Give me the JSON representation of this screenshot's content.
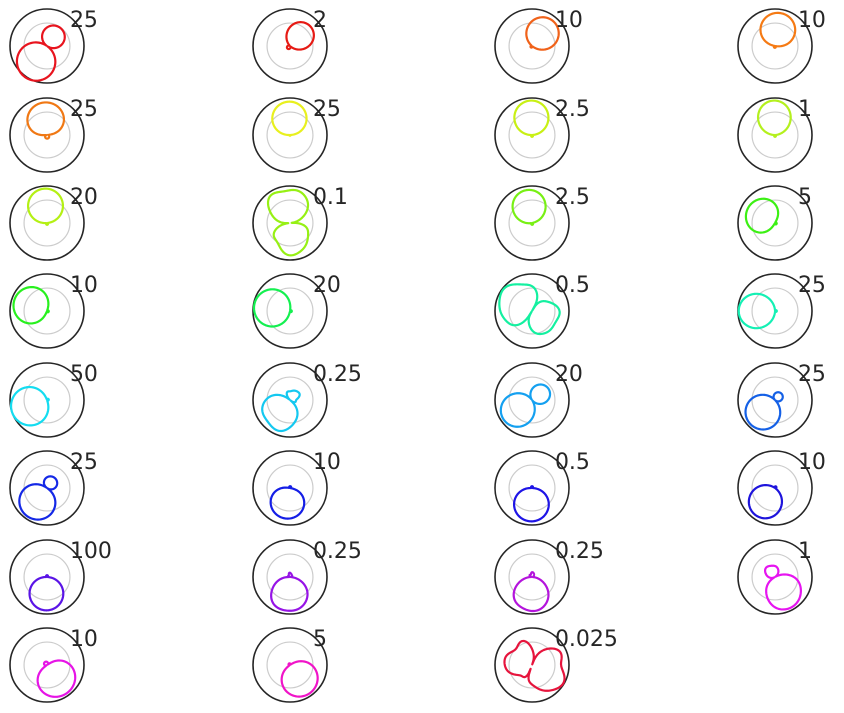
{
  "chart_data": {
    "type": "polar-grid",
    "rows": 8,
    "cols": 4,
    "outer_ring_color": "#262626",
    "inner_ring_color": "#cccccc",
    "panels": [
      {
        "label": "25",
        "color": "#e8141e",
        "dir": 235,
        "len": 1.05,
        "width": 0.38,
        "back": 0.62,
        "wobble": 0.0
      },
      {
        "label": "2",
        "color": "#e61a14",
        "dir": 45,
        "len": 0.78,
        "width": 0.3,
        "back": 0.1,
        "wobble": 0.0
      },
      {
        "label": "10",
        "color": "#f0621a",
        "dir": 50,
        "len": 0.9,
        "width": 0.35,
        "back": 0.05,
        "wobble": 0.0
      },
      {
        "label": "10",
        "color": "#f57a14",
        "dir": 80,
        "len": 0.92,
        "width": 0.42,
        "back": 0.05,
        "wobble": 0.0
      },
      {
        "label": "25",
        "color": "#f07814",
        "dir": 95,
        "len": 0.9,
        "width": 0.55,
        "back": 0.1,
        "wobble": 0.0
      },
      {
        "label": "25",
        "color": "#e8f01e",
        "dir": 92,
        "len": 0.92,
        "width": 0.4,
        "back": 0.02,
        "wobble": 0.0
      },
      {
        "label": "2.5",
        "color": "#c8f014",
        "dir": 92,
        "len": 0.95,
        "width": 0.35,
        "back": 0.05,
        "wobble": 0.0
      },
      {
        "label": "1",
        "color": "#b4f01e",
        "dir": 92,
        "len": 0.95,
        "width": 0.3,
        "back": 0.05,
        "wobble": 0.0
      },
      {
        "label": "20",
        "color": "#b4f014",
        "dir": 95,
        "len": 0.95,
        "width": 0.38,
        "back": 0.05,
        "wobble": 0.0
      },
      {
        "label": "0.1",
        "color": "#96f014",
        "dir": 95,
        "len": 0.95,
        "width": 0.55,
        "back": 0.85,
        "wobble": 0.08
      },
      {
        "label": "2.5",
        "color": "#78f014",
        "dir": 100,
        "len": 0.92,
        "width": 0.35,
        "back": 0.05,
        "wobble": 0.0
      },
      {
        "label": "5",
        "color": "#3cf014",
        "dir": 150,
        "len": 0.85,
        "width": 0.55,
        "back": 0.05,
        "wobble": 0.0
      },
      {
        "label": "10",
        "color": "#28f01e",
        "dir": 160,
        "len": 0.95,
        "width": 0.45,
        "back": 0.05,
        "wobble": 0.0
      },
      {
        "label": "20",
        "color": "#14f050",
        "dir": 170,
        "len": 1.0,
        "width": 0.4,
        "back": 0.05,
        "wobble": 0.0
      },
      {
        "label": "0.5",
        "color": "#14f0a0",
        "dir": 150,
        "len": 0.95,
        "width": 0.85,
        "back": 0.75,
        "wobble": 0.06
      },
      {
        "label": "25",
        "color": "#14f0b4",
        "dir": 180,
        "len": 1.0,
        "width": 0.3,
        "back": 0.05,
        "wobble": 0.0
      },
      {
        "label": "50",
        "color": "#14dcf0",
        "dir": 200,
        "len": 1.02,
        "width": 0.42,
        "back": 0.05,
        "wobble": 0.0
      },
      {
        "label": "0.25",
        "color": "#14c8f0",
        "dir": 230,
        "len": 0.9,
        "width": 0.55,
        "back": 0.3,
        "wobble": 0.05
      },
      {
        "label": "20",
        "color": "#14a0f0",
        "dir": 215,
        "len": 0.95,
        "width": 0.32,
        "back": 0.55,
        "wobble": 0.0
      },
      {
        "label": "25",
        "color": "#1460e6",
        "dir": 225,
        "len": 0.95,
        "width": 0.38,
        "back": 0.25,
        "wobble": 0.0
      },
      {
        "label": "25",
        "color": "#1428e6",
        "dir": 235,
        "len": 0.95,
        "width": 0.45,
        "back": 0.35,
        "wobble": 0.0
      },
      {
        "label": "10",
        "color": "#141ee6",
        "dir": 260,
        "len": 0.85,
        "width": 0.5,
        "back": 0.05,
        "wobble": 0.0
      },
      {
        "label": "0.5",
        "color": "#1e14e6",
        "dir": 268,
        "len": 0.92,
        "width": 0.42,
        "back": 0.05,
        "wobble": 0.0
      },
      {
        "label": "10",
        "color": "#1e14dc",
        "dir": 235,
        "len": 0.92,
        "width": 0.35,
        "back": 0.05,
        "wobble": 0.0
      },
      {
        "label": "100",
        "color": "#5a14e6",
        "dir": 268,
        "len": 0.92,
        "width": 0.38,
        "back": 0.05,
        "wobble": 0.0
      },
      {
        "label": "0.25",
        "color": "#9614e6",
        "dir": 268,
        "len": 0.95,
        "width": 0.42,
        "back": 0.1,
        "wobble": 0.03
      },
      {
        "label": "0.25",
        "color": "#b414dc",
        "dir": 268,
        "len": 0.95,
        "width": 0.35,
        "back": 0.12,
        "wobble": 0.03
      },
      {
        "label": "1",
        "color": "#e614f0",
        "dir": 300,
        "len": 0.95,
        "width": 0.4,
        "back": 0.35,
        "wobble": 0.02
      },
      {
        "label": "10",
        "color": "#e614e6",
        "dir": 305,
        "len": 0.95,
        "width": 0.55,
        "back": 0.1,
        "wobble": 0.0
      },
      {
        "label": "5",
        "color": "#f014c8",
        "dir": 305,
        "len": 0.95,
        "width": 0.45,
        "back": 0.05,
        "wobble": 0.0
      },
      {
        "label": "0.025",
        "color": "#e6143c",
        "dir": 340,
        "len": 0.95,
        "width": 0.8,
        "back": 0.75,
        "wobble": 0.12
      }
    ]
  }
}
